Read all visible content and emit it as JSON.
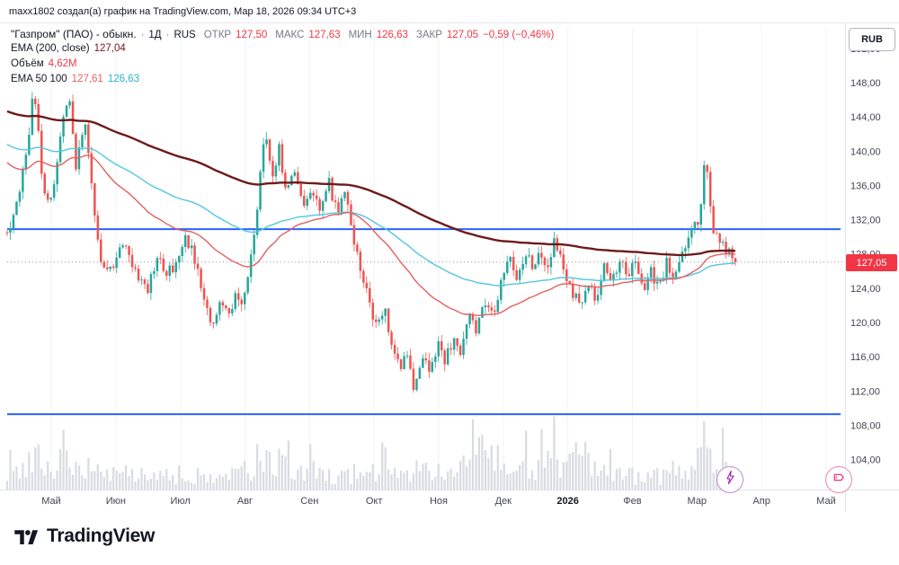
{
  "attribution": "maxx1802 создал(а) график на TradingView.com, Мар 18, 2026 09:34 UTC+3",
  "legend": {
    "title": "\"Газпром\" (ПАО) - обыкн.",
    "sep": "·",
    "interval": "1Д",
    "exchange": "RUS",
    "o_label": "ОТКР",
    "o": "127,50",
    "h_label": "МАКС",
    "h": "127,63",
    "l_label": "МИН",
    "l": "126,63",
    "c_label": "ЗАКР",
    "c": "127,05",
    "change": "−0,59 (−0,46%)",
    "ema200_label": "EMA (200, close)",
    "ema200_value": "127,04",
    "volume_label": "Объём",
    "volume_value": "4,62M",
    "ema50100_label": "EMA 50 100",
    "ema50_value": "127,61",
    "ema100_value": "126,63"
  },
  "axis": {
    "currency": "RUB",
    "price_ticks": [
      "152,00",
      "148,00",
      "144,00",
      "140,00",
      "136,00",
      "132,00",
      "128,00",
      "124,00",
      "120,00",
      "116,00",
      "112,00",
      "108,00",
      "104,00"
    ],
    "last_price": "127,05",
    "months": [
      "Май",
      "Июн",
      "Июл",
      "Авг",
      "Сен",
      "Окт",
      "Ноя",
      "Дек",
      "2026",
      "Фев",
      "Мар",
      "Апр",
      "Май"
    ]
  },
  "logo": {
    "text": "TradingView"
  },
  "chart_data": {
    "type": "candlestick",
    "title": "Газпром (ПАО) - обыкн., 1Д, RUS",
    "currency": "RUB",
    "ylim": [
      100.5,
      154.5
    ],
    "y_ticks": [
      152,
      148,
      144,
      140,
      136,
      132,
      128,
      124,
      120,
      116,
      112,
      108,
      104
    ],
    "x_months": [
      "Май",
      "Июн",
      "Июл",
      "Авг",
      "Сен",
      "Окт",
      "Ноя",
      "Дек",
      "2026",
      "Фев",
      "Мар",
      "Апр",
      "Май"
    ],
    "ohlc_last": {
      "open": 127.5,
      "high": 127.63,
      "low": 126.63,
      "close": 127.05,
      "change": -0.59,
      "change_pct": -0.46
    },
    "indicators": {
      "ema200": 127.04,
      "ema50": 127.61,
      "ema100": 126.63,
      "volume": "4,62M"
    },
    "horizontal_lines": [
      130.9,
      109.3
    ],
    "n_candles": 234,
    "ema_seeds": {
      "ema50": 139,
      "ema100": 141,
      "ema200": 144.8
    },
    "trend_waypoints": [
      [
        0,
        130.5
      ],
      [
        0.012,
        133
      ],
      [
        0.027,
        140
      ],
      [
        0.037,
        147.5
      ],
      [
        0.049,
        136
      ],
      [
        0.062,
        134
      ],
      [
        0.074,
        143
      ],
      [
        0.086,
        146
      ],
      [
        0.095,
        138
      ],
      [
        0.107,
        144
      ],
      [
        0.117,
        135
      ],
      [
        0.128,
        127.5
      ],
      [
        0.141,
        126
      ],
      [
        0.157,
        129.5
      ],
      [
        0.175,
        126.5
      ],
      [
        0.191,
        123.5
      ],
      [
        0.206,
        127.5
      ],
      [
        0.219,
        125.5
      ],
      [
        0.232,
        127
      ],
      [
        0.243,
        130
      ],
      [
        0.256,
        128
      ],
      [
        0.268,
        123
      ],
      [
        0.28,
        119.5
      ],
      [
        0.293,
        122.5
      ],
      [
        0.305,
        120.5
      ],
      [
        0.314,
        123
      ],
      [
        0.323,
        121.5
      ],
      [
        0.333,
        127
      ],
      [
        0.344,
        133.5
      ],
      [
        0.354,
        143.5
      ],
      [
        0.364,
        136.5
      ],
      [
        0.373,
        140.5
      ],
      [
        0.383,
        134.5
      ],
      [
        0.395,
        138
      ],
      [
        0.407,
        133.5
      ],
      [
        0.42,
        135
      ],
      [
        0.43,
        132.5
      ],
      [
        0.441,
        136.5
      ],
      [
        0.453,
        133
      ],
      [
        0.463,
        135.5
      ],
      [
        0.474,
        130
      ],
      [
        0.484,
        126.5
      ],
      [
        0.496,
        122.5
      ],
      [
        0.506,
        119.5
      ],
      [
        0.519,
        121.5
      ],
      [
        0.528,
        117.5
      ],
      [
        0.54,
        114.5
      ],
      [
        0.548,
        117
      ],
      [
        0.558,
        112.5
      ],
      [
        0.57,
        116.5
      ],
      [
        0.58,
        114
      ],
      [
        0.591,
        117.5
      ],
      [
        0.601,
        115.5
      ],
      [
        0.614,
        118.5
      ],
      [
        0.623,
        116.5
      ],
      [
        0.635,
        121
      ],
      [
        0.644,
        119
      ],
      [
        0.657,
        122.5
      ],
      [
        0.667,
        120.5
      ],
      [
        0.677,
        124
      ],
      [
        0.688,
        127.8
      ],
      [
        0.7,
        125.5
      ],
      [
        0.712,
        128.3
      ],
      [
        0.722,
        126
      ],
      [
        0.731,
        129
      ],
      [
        0.741,
        126.5
      ],
      [
        0.752,
        129.5
      ],
      [
        0.762,
        127
      ],
      [
        0.774,
        124
      ],
      [
        0.786,
        121.8
      ],
      [
        0.799,
        124.5
      ],
      [
        0.809,
        122.5
      ],
      [
        0.82,
        126.5
      ],
      [
        0.83,
        124.5
      ],
      [
        0.842,
        128
      ],
      [
        0.852,
        125.5
      ],
      [
        0.863,
        127.5
      ],
      [
        0.873,
        123.5
      ],
      [
        0.883,
        126
      ],
      [
        0.894,
        124
      ],
      [
        0.906,
        127
      ],
      [
        0.916,
        125.5
      ],
      [
        0.928,
        128.5
      ],
      [
        0.938,
        130.5
      ],
      [
        0.951,
        132.5
      ],
      [
        0.959,
        139.3
      ],
      [
        0.968,
        131
      ],
      [
        0.978,
        129.8
      ],
      [
        0.988,
        128.3
      ],
      [
        1,
        127.05
      ]
    ],
    "volume_profile": [
      [
        0,
        1.8
      ],
      [
        0.05,
        2.3
      ],
      [
        0.12,
        1.3
      ],
      [
        0.2,
        1.0
      ],
      [
        0.3,
        1.2
      ],
      [
        0.35,
        2.2
      ],
      [
        0.45,
        1.1
      ],
      [
        0.55,
        1.4
      ],
      [
        0.62,
        1.3
      ],
      [
        0.66,
        2.9
      ],
      [
        0.7,
        1.3
      ],
      [
        0.78,
        2.4
      ],
      [
        0.85,
        1.0
      ],
      [
        0.92,
        1.1
      ],
      [
        0.96,
        2.3
      ],
      [
        1,
        1.2
      ]
    ],
    "colors": {
      "up": "#26a69a",
      "down": "#ef5350",
      "ema200": "#6d1b1b",
      "ema50": "#e35f5f",
      "ema100": "#4fc8dc",
      "hline": "#2962ff",
      "volume": "#d8dbe2",
      "last_price_bg": "#f23645",
      "last_price_line": "#9598a1"
    }
  }
}
